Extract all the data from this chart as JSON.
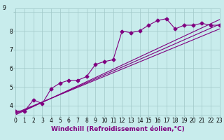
{
  "background_color": "#c8ecec",
  "grid_color": "#a0c8c8",
  "line_color": "#800080",
  "xlabel": "Windchill (Refroidissement éolien,°C)",
  "xlim": [
    0,
    23
  ],
  "ylim": [
    3.5,
    9.2
  ],
  "xticks": [
    0,
    1,
    2,
    3,
    4,
    5,
    6,
    7,
    8,
    9,
    10,
    11,
    12,
    13,
    14,
    15,
    16,
    17,
    18,
    19,
    20,
    21,
    22,
    23
  ],
  "yticks": [
    4,
    5,
    6,
    7,
    8,
    9
  ],
  "scatter_x": [
    0,
    1,
    2,
    3,
    4,
    5,
    6,
    7,
    8,
    9,
    10,
    11,
    12,
    13,
    14,
    15,
    16,
    17,
    18,
    19,
    20,
    21,
    22,
    23
  ],
  "scatter_y": [
    3.7,
    3.7,
    4.3,
    4.1,
    4.9,
    5.2,
    5.35,
    5.35,
    5.55,
    6.2,
    6.35,
    6.45,
    7.98,
    7.9,
    8.0,
    8.3,
    8.55,
    8.65,
    8.1,
    8.3,
    8.3,
    8.4,
    8.3,
    8.3
  ],
  "line1_x": [
    0,
    23
  ],
  "line1_y": [
    3.6,
    8.1
  ],
  "line2_x": [
    0,
    23
  ],
  "line2_y": [
    3.55,
    8.35
  ],
  "line3_x": [
    0,
    23
  ],
  "line3_y": [
    3.5,
    8.6
  ],
  "marker": "D",
  "markersize": 2.5,
  "linewidth": 0.8,
  "tick_fontsize": 5.5,
  "xlabel_fontsize": 6.5
}
